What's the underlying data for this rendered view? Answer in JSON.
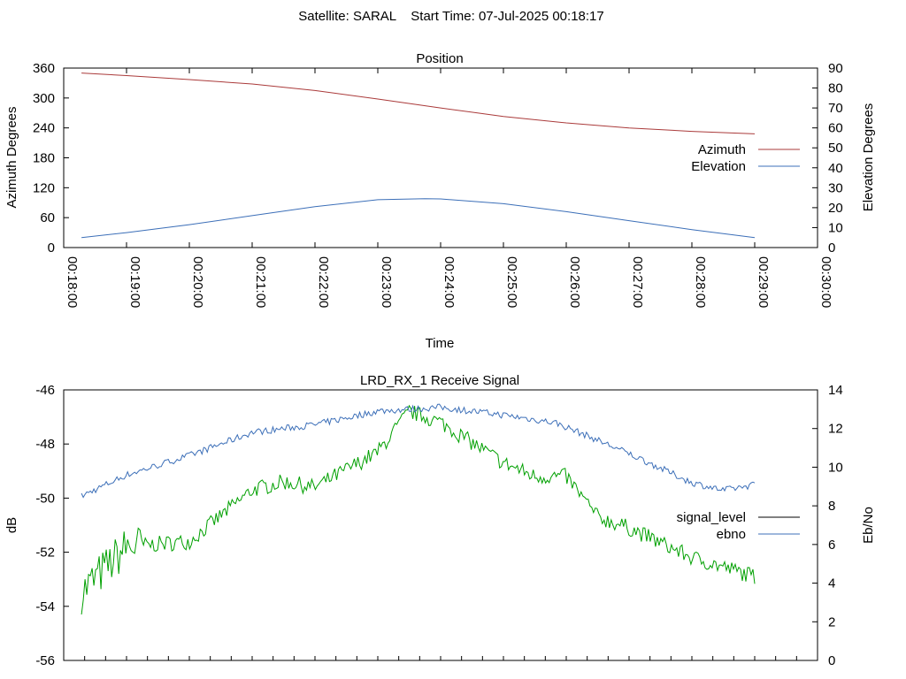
{
  "header": {
    "text": "Satellite: SARAL    Start Time: 07-Jul-2025 00:18:17"
  },
  "colors": {
    "azimuth": "#aa3a3a",
    "elevation": "#3c6fb8",
    "signal_level_legend": "#000000",
    "signal_level_line": "#00a000",
    "ebno": "#3c6fb8",
    "axis": "#000000"
  },
  "chart_data": [
    {
      "type": "line",
      "title": "Position",
      "xlabel": "Time",
      "ylabel": "Azimuth Degrees",
      "y2label": "Elevation Degrees",
      "x_tick_labels": [
        "00:18:00",
        "00:19:00",
        "00:20:00",
        "00:21:00",
        "00:22:00",
        "00:23:00",
        "00:24:00",
        "00:25:00",
        "00:26:00",
        "00:27:00",
        "00:28:00",
        "00:29:00",
        "00:30:00"
      ],
      "xlim": [
        "00:18:00",
        "00:30:00"
      ],
      "y_ticks": [
        "0",
        "60",
        "120",
        "180",
        "240",
        "300",
        "360"
      ],
      "ylim": [
        0,
        360
      ],
      "y2_ticks": [
        "0",
        "10",
        "20",
        "30",
        "40",
        "50",
        "60",
        "70",
        "80",
        "90"
      ],
      "y2lim": [
        0,
        90
      ],
      "legend_position": "right",
      "series": [
        {
          "name": "Azimuth",
          "axis": "y1",
          "x": [
            "00:18:17",
            "00:19:00",
            "00:20:00",
            "00:21:00",
            "00:22:00",
            "00:23:00",
            "00:24:00",
            "00:25:00",
            "00:26:00",
            "00:27:00",
            "00:28:00",
            "00:29:00"
          ],
          "y": [
            350,
            345,
            337,
            328,
            315,
            298,
            280,
            263,
            250,
            240,
            233,
            228
          ]
        },
        {
          "name": "Elevation",
          "axis": "y2",
          "x": [
            "00:18:17",
            "00:19:00",
            "00:20:00",
            "00:21:00",
            "00:22:00",
            "00:23:00",
            "00:23:45",
            "00:24:00",
            "00:25:00",
            "00:26:00",
            "00:27:00",
            "00:28:00",
            "00:29:00"
          ],
          "y": [
            5,
            7.5,
            11.5,
            16,
            20.5,
            24,
            24.5,
            24.4,
            22,
            18,
            13.5,
            9,
            5
          ]
        }
      ]
    },
    {
      "type": "line",
      "title": "LRD_RX_1 Receive Signal",
      "ylabel": "dB",
      "y2label": "Eb/No",
      "ylim": [
        -56,
        -46
      ],
      "y_ticks": [
        "-46",
        "-48",
        "-50",
        "-52",
        "-54",
        "-56"
      ],
      "y2lim": [
        0,
        14
      ],
      "y2_ticks": [
        "0",
        "2",
        "4",
        "6",
        "8",
        "10",
        "12",
        "14"
      ],
      "legend_position": "right",
      "series": [
        {
          "name": "signal_level",
          "axis": "y1",
          "x": [
            "00:18:17",
            "00:19:00",
            "00:20:00",
            "00:21:00",
            "00:21:30",
            "00:22:00",
            "00:23:00",
            "00:23:30",
            "00:24:00",
            "00:25:00",
            "00:25:30",
            "00:26:00",
            "00:26:30",
            "00:27:00",
            "00:28:00",
            "00:29:00"
          ],
          "y": [
            -53.5,
            -51.8,
            -51.6,
            -49.7,
            -49.4,
            -49.6,
            -48.3,
            -46.8,
            -47.2,
            -48.7,
            -49.2,
            -49.2,
            -50.7,
            -51.1,
            -52.2,
            -52.9
          ]
        },
        {
          "name": "ebno",
          "axis": "y2",
          "x": [
            "00:18:17",
            "00:19:00",
            "00:20:00",
            "00:21:00",
            "00:22:00",
            "00:23:00",
            "00:23:30",
            "00:24:00",
            "00:25:00",
            "00:25:50",
            "00:26:30",
            "00:27:00",
            "00:28:00",
            "00:28:30",
            "00:29:00"
          ],
          "y": [
            8.5,
            9.6,
            10.6,
            11.8,
            12.2,
            12.9,
            13.0,
            13.1,
            12.7,
            12.3,
            11.4,
            10.7,
            9.2,
            8.8,
            9.1
          ]
        }
      ]
    }
  ]
}
